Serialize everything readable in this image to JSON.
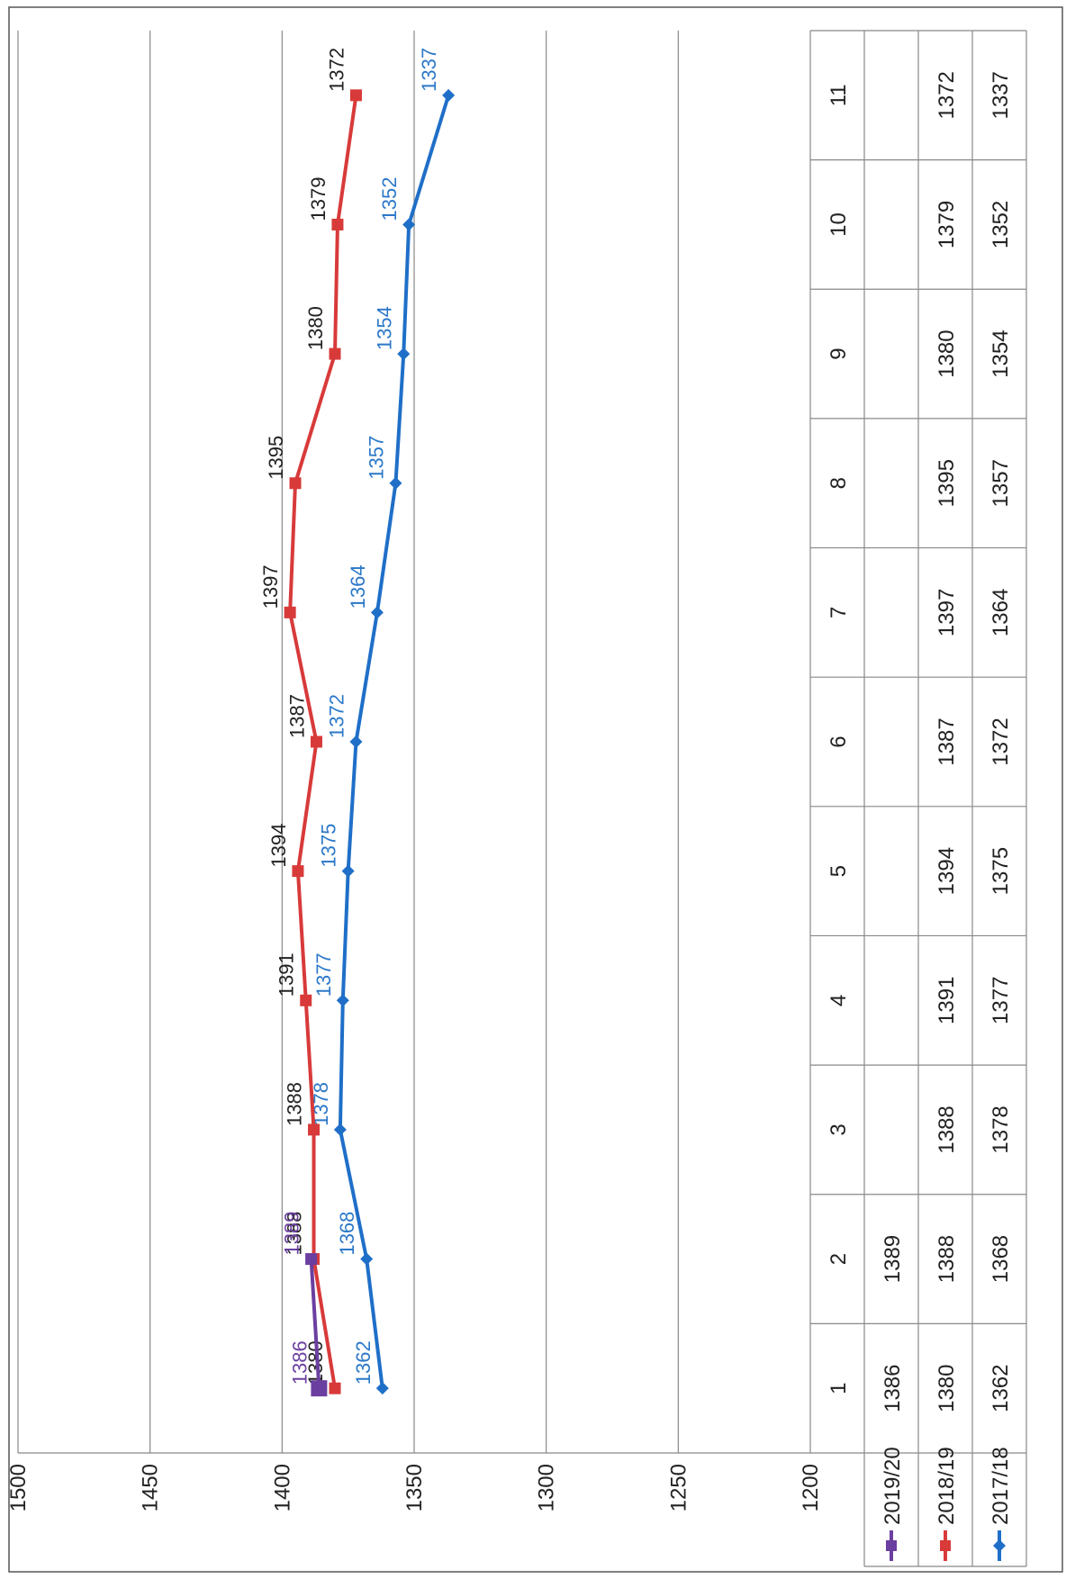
{
  "chart_data": {
    "type": "line",
    "categories": [
      "1",
      "2",
      "3",
      "4",
      "5",
      "6",
      "7",
      "8",
      "9",
      "10",
      "11"
    ],
    "series": [
      {
        "name": "2019/20",
        "color": "#6b3fa0",
        "label_color": "#6b3fa0",
        "marker": "square",
        "values": [
          1386,
          1389,
          null,
          null,
          null,
          null,
          null,
          null,
          null,
          null,
          null
        ]
      },
      {
        "name": "2018/19",
        "color": "#d83a3a",
        "label_color": "#222222",
        "marker": "square",
        "values": [
          1380,
          1388,
          1388,
          1391,
          1394,
          1387,
          1397,
          1395,
          1380,
          1379,
          1372
        ]
      },
      {
        "name": "2017/18",
        "color": "#1f6fc8",
        "label_color": "#2b78c8",
        "marker": "diamond",
        "values": [
          1362,
          1368,
          1378,
          1377,
          1375,
          1372,
          1364,
          1357,
          1354,
          1352,
          1337
        ]
      }
    ],
    "yticks": [
      1200,
      1250,
      1300,
      1350,
      1400,
      1450,
      1500
    ],
    "ylim": [
      1200,
      1500
    ],
    "grid": true,
    "legend": "data-table"
  }
}
